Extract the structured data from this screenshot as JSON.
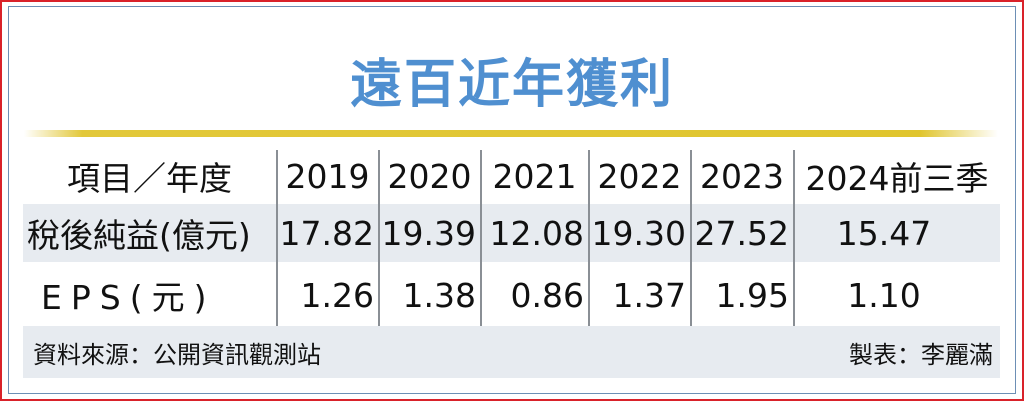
{
  "title": "遠百近年獲利",
  "table": {
    "header": [
      "項目／年度",
      "2019",
      "2020",
      "2021",
      "2022",
      "2023",
      "2024前三季"
    ],
    "rows": [
      {
        "label": "稅後純益(億元)",
        "values": [
          "17.82",
          "19.39",
          "12.08",
          "19.30",
          "27.52",
          "15.47"
        ]
      },
      {
        "label": "EPS(元)",
        "values": [
          "1.26",
          "1.38",
          "0.86",
          "1.37",
          "1.95",
          "1.10"
        ]
      }
    ]
  },
  "footer": {
    "source": "資料來源：公開資訊觀測站",
    "author": "製表：李麗滿"
  },
  "colors": {
    "title": "#4f8fd0",
    "accent_bar": "#e0c52e",
    "row_shade": "#e7ebf0",
    "border": "#d9222a"
  }
}
